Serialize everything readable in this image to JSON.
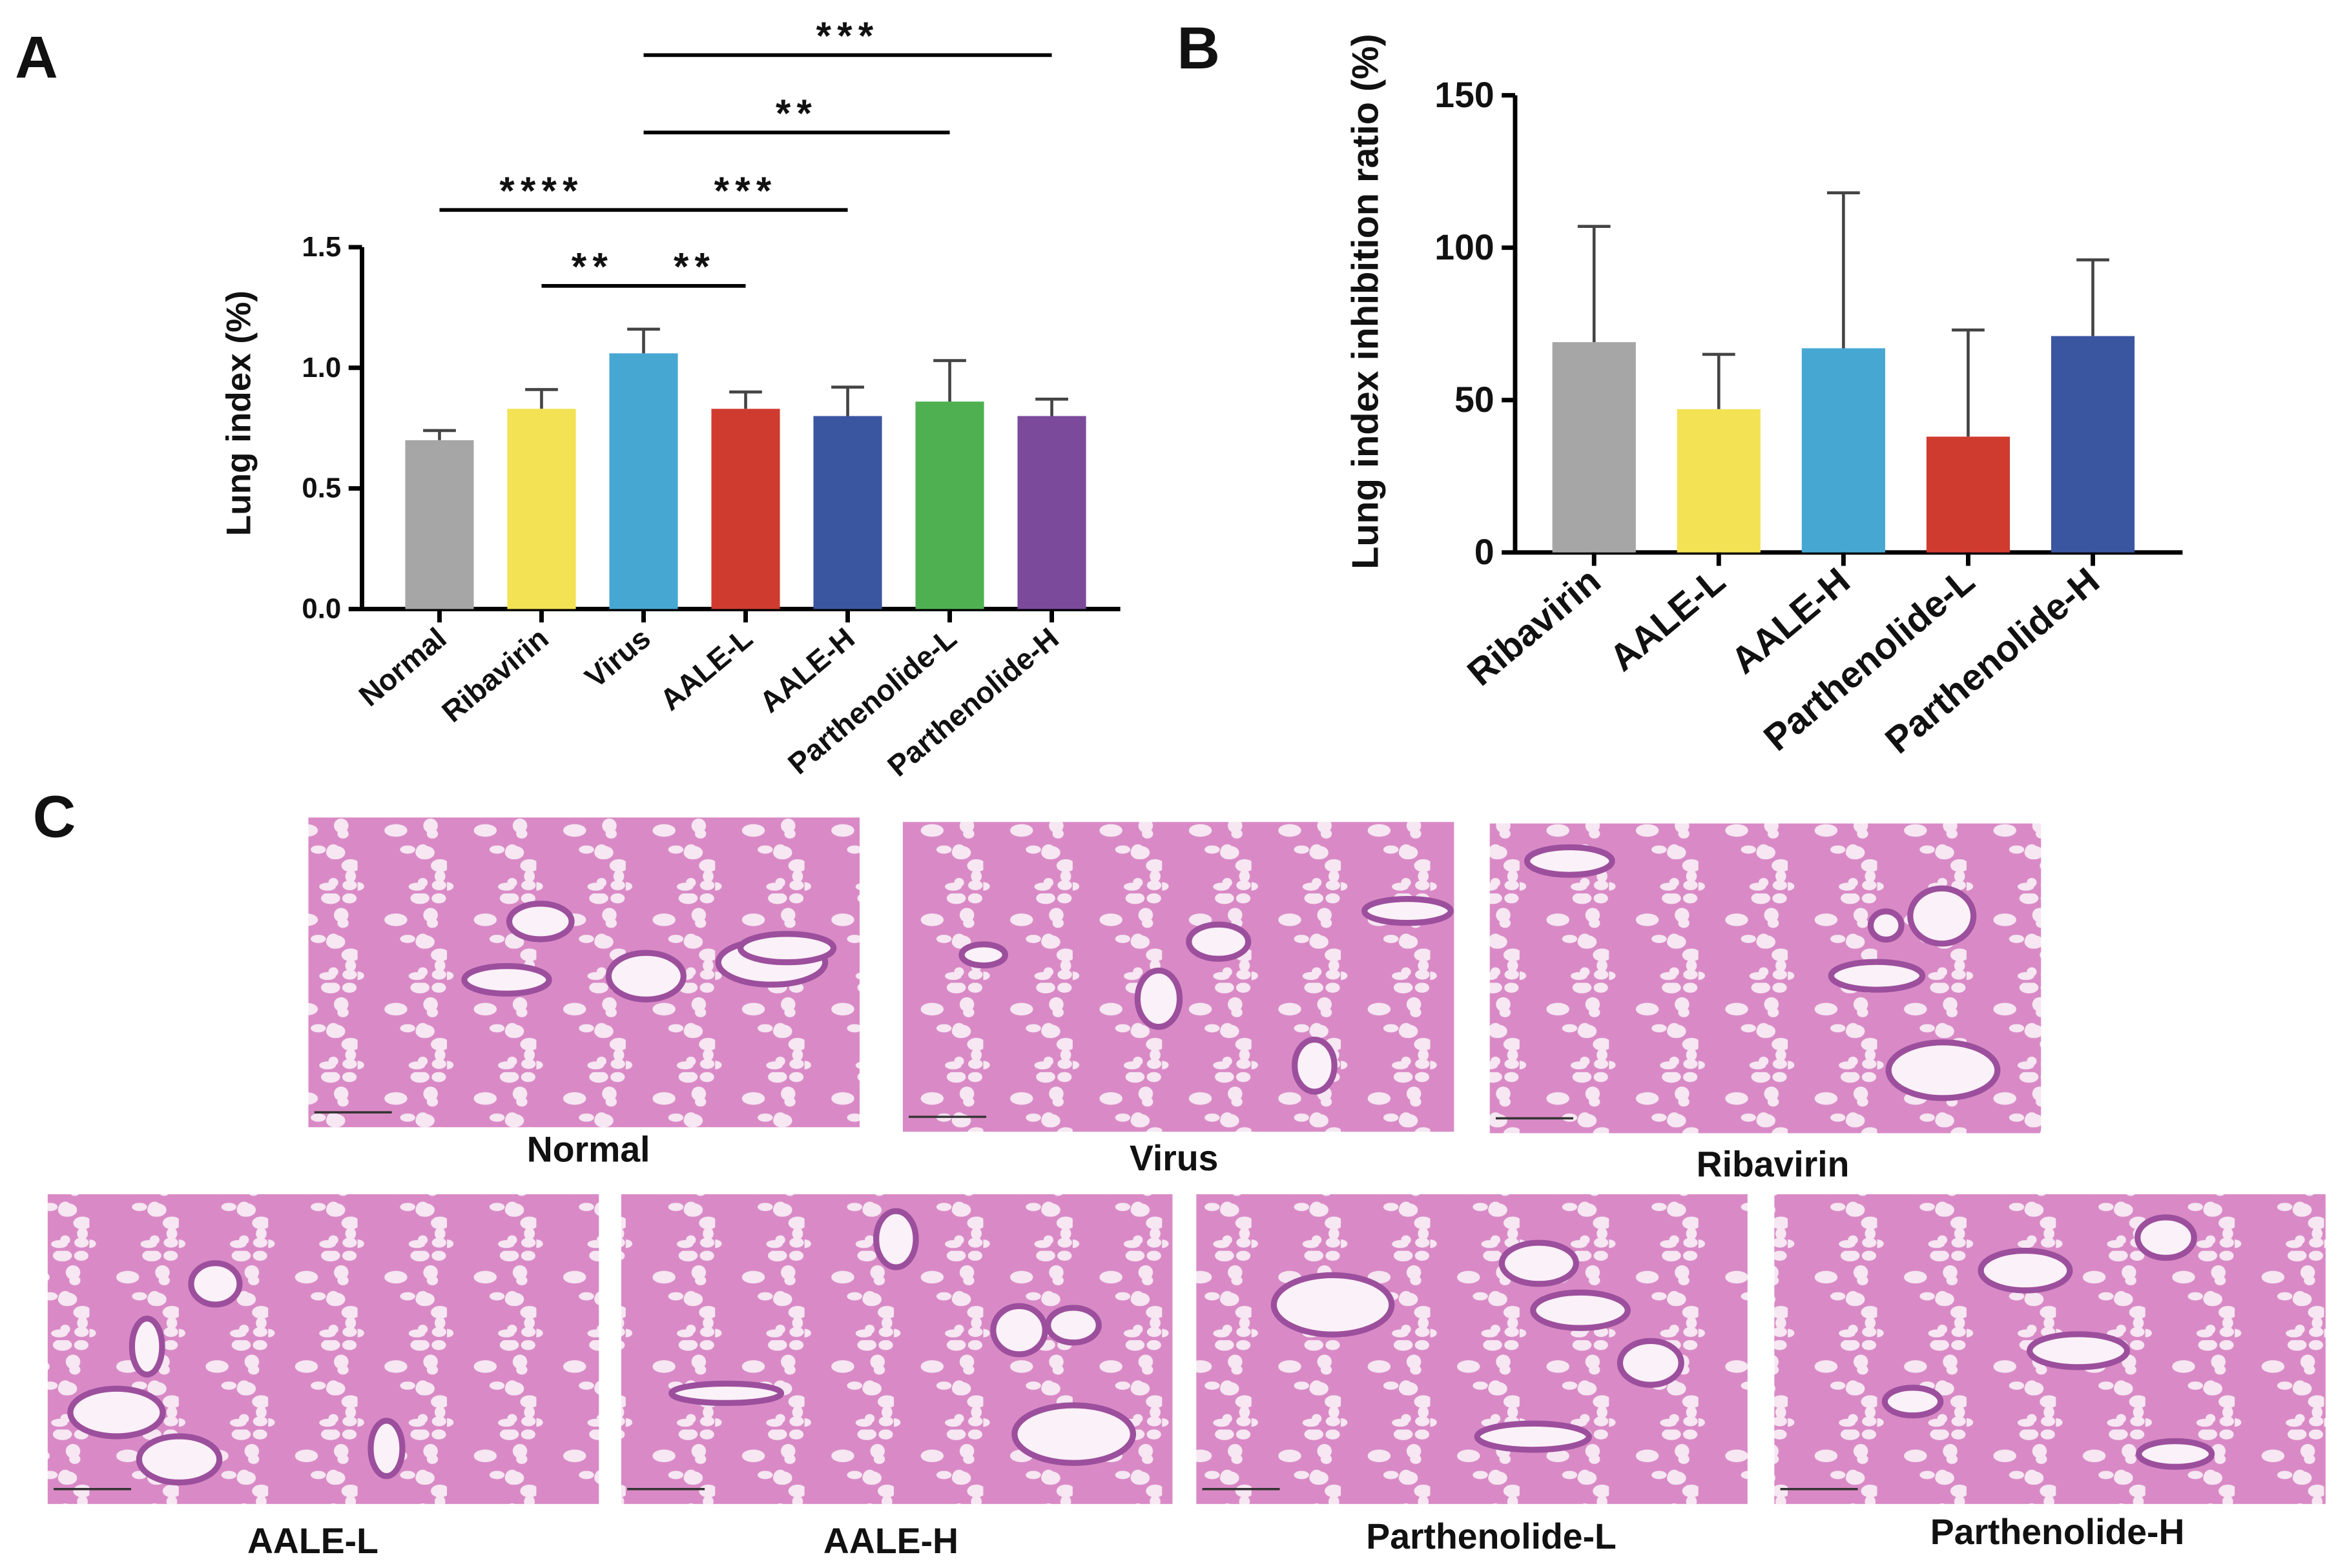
{
  "chart_data": [
    {
      "type": "bar",
      "panel": "A",
      "y_label": "Lung index (%)",
      "categories": [
        "Normal",
        "Ribavirin",
        "Virus",
        "AALE-L",
        "AALE-H",
        "Parthenolide-L",
        "Parthenolide-H"
      ],
      "values": [
        0.7,
        0.83,
        1.06,
        0.83,
        0.8,
        0.86,
        0.8
      ],
      "errors": [
        0.04,
        0.08,
        0.1,
        0.07,
        0.12,
        0.17,
        0.07
      ],
      "colors": [
        "#a6a6a6",
        "#f3e253",
        "#47a7d3",
        "#d03b30",
        "#3b56a1",
        "#4fb052",
        "#7c4a9b"
      ],
      "ylim": [
        0,
        1.5
      ],
      "yticks": [
        {
          "value": 0,
          "label": "0.0"
        },
        {
          "value": 0.5,
          "label": "0.5"
        },
        {
          "value": 1,
          "label": "1.0"
        },
        {
          "value": 1.5,
          "label": "1.5"
        }
      ],
      "comparisons": [
        {
          "from": "Normal",
          "to": "Virus",
          "label": "****"
        },
        {
          "from": "Ribavirin",
          "to": "Virus",
          "label": "**"
        },
        {
          "from": "Virus",
          "to": "AALE-L",
          "label": "**"
        },
        {
          "from": "Virus",
          "to": "AALE-H",
          "label": "***"
        },
        {
          "from": "Virus",
          "to": "Parthenolide-L",
          "label": "**"
        },
        {
          "from": "Virus",
          "to": "Parthenolide-H",
          "label": "***"
        }
      ]
    },
    {
      "type": "bar",
      "panel": "B",
      "y_label": "Lung index inhibition ratio (%)",
      "categories": [
        "Ribavirin",
        "AALE-L",
        "AALE-H",
        "Parthenolide-L",
        "Parthenolide-H"
      ],
      "values": [
        69,
        47,
        67,
        38,
        71
      ],
      "errors": [
        38,
        18,
        51,
        35,
        25
      ],
      "colors": [
        "#a6a6a6",
        "#f3e253",
        "#47a7d3",
        "#d03b30",
        "#3b56a1"
      ],
      "ylim": [
        0,
        150
      ],
      "yticks": [
        0,
        50,
        100,
        150
      ]
    }
  ],
  "histology": {
    "panel": "C",
    "images": [
      {
        "label": "Normal"
      },
      {
        "label": "Virus"
      },
      {
        "label": "Ribavirin"
      },
      {
        "label": "AALE-L"
      },
      {
        "label": "AALE-H"
      },
      {
        "label": "Parthenolide-L"
      },
      {
        "label": "Parthenolide-H"
      }
    ]
  }
}
